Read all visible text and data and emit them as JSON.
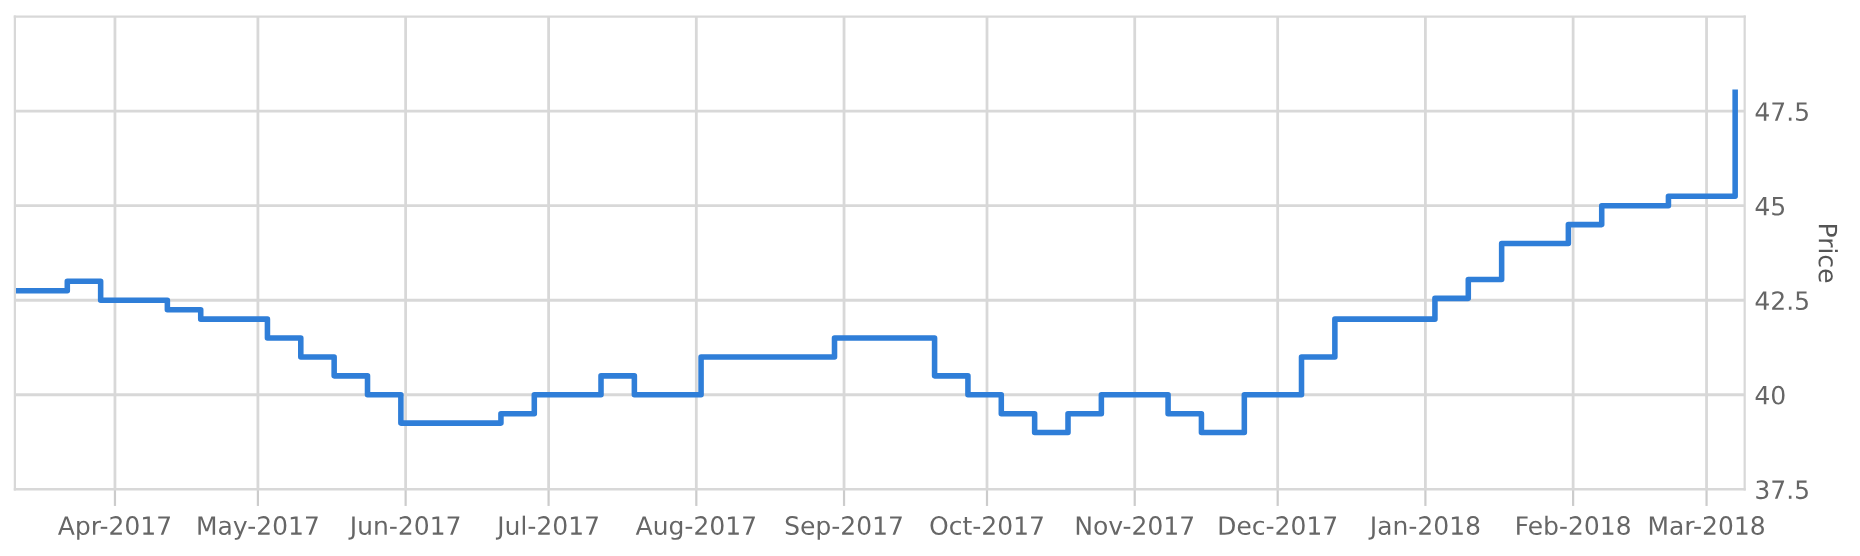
{
  "chart_data": {
    "type": "step",
    "ylabel": "Price",
    "x": [
      "2017-03-11",
      "2017-03-22",
      "2017-03-29",
      "2017-04-12",
      "2017-04-19",
      "2017-05-03",
      "2017-05-10",
      "2017-05-17",
      "2017-05-24",
      "2017-05-31",
      "2017-06-21",
      "2017-06-28",
      "2017-07-12",
      "2017-07-19",
      "2017-08-02",
      "2017-08-30",
      "2017-09-20",
      "2017-09-27",
      "2017-10-04",
      "2017-10-11",
      "2017-10-18",
      "2017-10-25",
      "2017-11-08",
      "2017-11-15",
      "2017-11-24",
      "2017-12-06",
      "2017-12-13",
      "2018-01-03",
      "2018-01-10",
      "2018-01-17",
      "2018-01-31",
      "2018-02-07",
      "2018-02-21",
      "2018-03-07"
    ],
    "series": [
      {
        "color": "#2f7ed8",
        "values": [
          42.75,
          43.0,
          42.5,
          42.25,
          42.0,
          41.5,
          41.0,
          40.5,
          40.0,
          39.25,
          39.5,
          40.0,
          40.5,
          40.0,
          41.0,
          41.5,
          40.5,
          40.0,
          39.5,
          39.0,
          39.5,
          40.0,
          39.5,
          39.0,
          40.0,
          41.0,
          42.0,
          42.55,
          43.05,
          44.0,
          44.5,
          45.0,
          45.25,
          48.0
        ]
      }
    ],
    "xlim": [
      "2017-03-11",
      "2018-03-09"
    ],
    "xticks": [
      {
        "value": "2017-04-01",
        "label": "Apr-2017"
      },
      {
        "value": "2017-05-01",
        "label": "May-2017"
      },
      {
        "value": "2017-06-01",
        "label": "Jun-2017"
      },
      {
        "value": "2017-07-01",
        "label": "Jul-2017"
      },
      {
        "value": "2017-08-01",
        "label": "Aug-2017"
      },
      {
        "value": "2017-09-01",
        "label": "Sep-2017"
      },
      {
        "value": "2017-10-01",
        "label": "Oct-2017"
      },
      {
        "value": "2017-11-01",
        "label": "Nov-2017"
      },
      {
        "value": "2017-12-01",
        "label": "Dec-2017"
      },
      {
        "value": "2018-01-01",
        "label": "Jan-2018"
      },
      {
        "value": "2018-02-01",
        "label": "Feb-2018"
      },
      {
        "value": "2018-03-01",
        "label": "Mar-2018"
      }
    ],
    "ylim": [
      37.5,
      50
    ],
    "yticks": [
      37.5,
      40,
      42.5,
      45,
      47.5
    ],
    "grid": true,
    "legend": false
  }
}
